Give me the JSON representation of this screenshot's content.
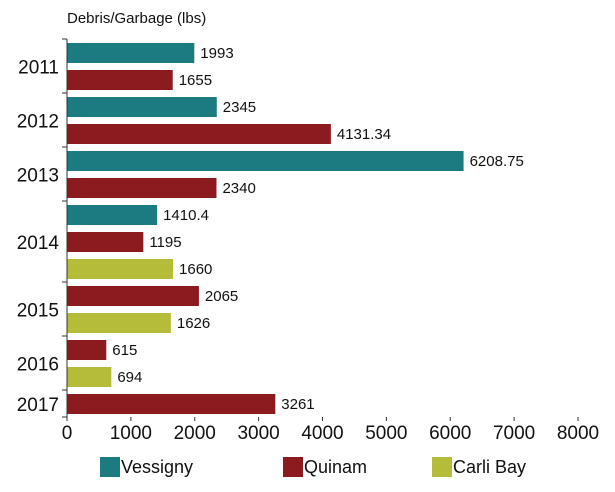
{
  "chart_data": {
    "type": "hbar",
    "x_label": "Debris/Garbage (lbs)",
    "categories": [
      "2011",
      "2012",
      "2013",
      "2014",
      "2015",
      "2016",
      "2017"
    ],
    "series": [
      {
        "name": "Vessigny",
        "color": "#1b7b80",
        "values": [
          1993,
          2345,
          6208.75,
          1410.4,
          null,
          null,
          null
        ]
      },
      {
        "name": "Quinam",
        "color": "#8c1b20",
        "values": [
          1655,
          4131.34,
          2340,
          1195,
          2065,
          615,
          3261
        ]
      },
      {
        "name": "Carli Bay",
        "color": "#b4bc3a",
        "values": [
          null,
          null,
          null,
          1660,
          1626,
          694,
          null
        ]
      }
    ],
    "xlim": [
      0,
      8000
    ],
    "xticks": [
      0,
      1000,
      2000,
      3000,
      4000,
      5000,
      6000,
      7000,
      8000
    ],
    "legend": "bottom"
  }
}
